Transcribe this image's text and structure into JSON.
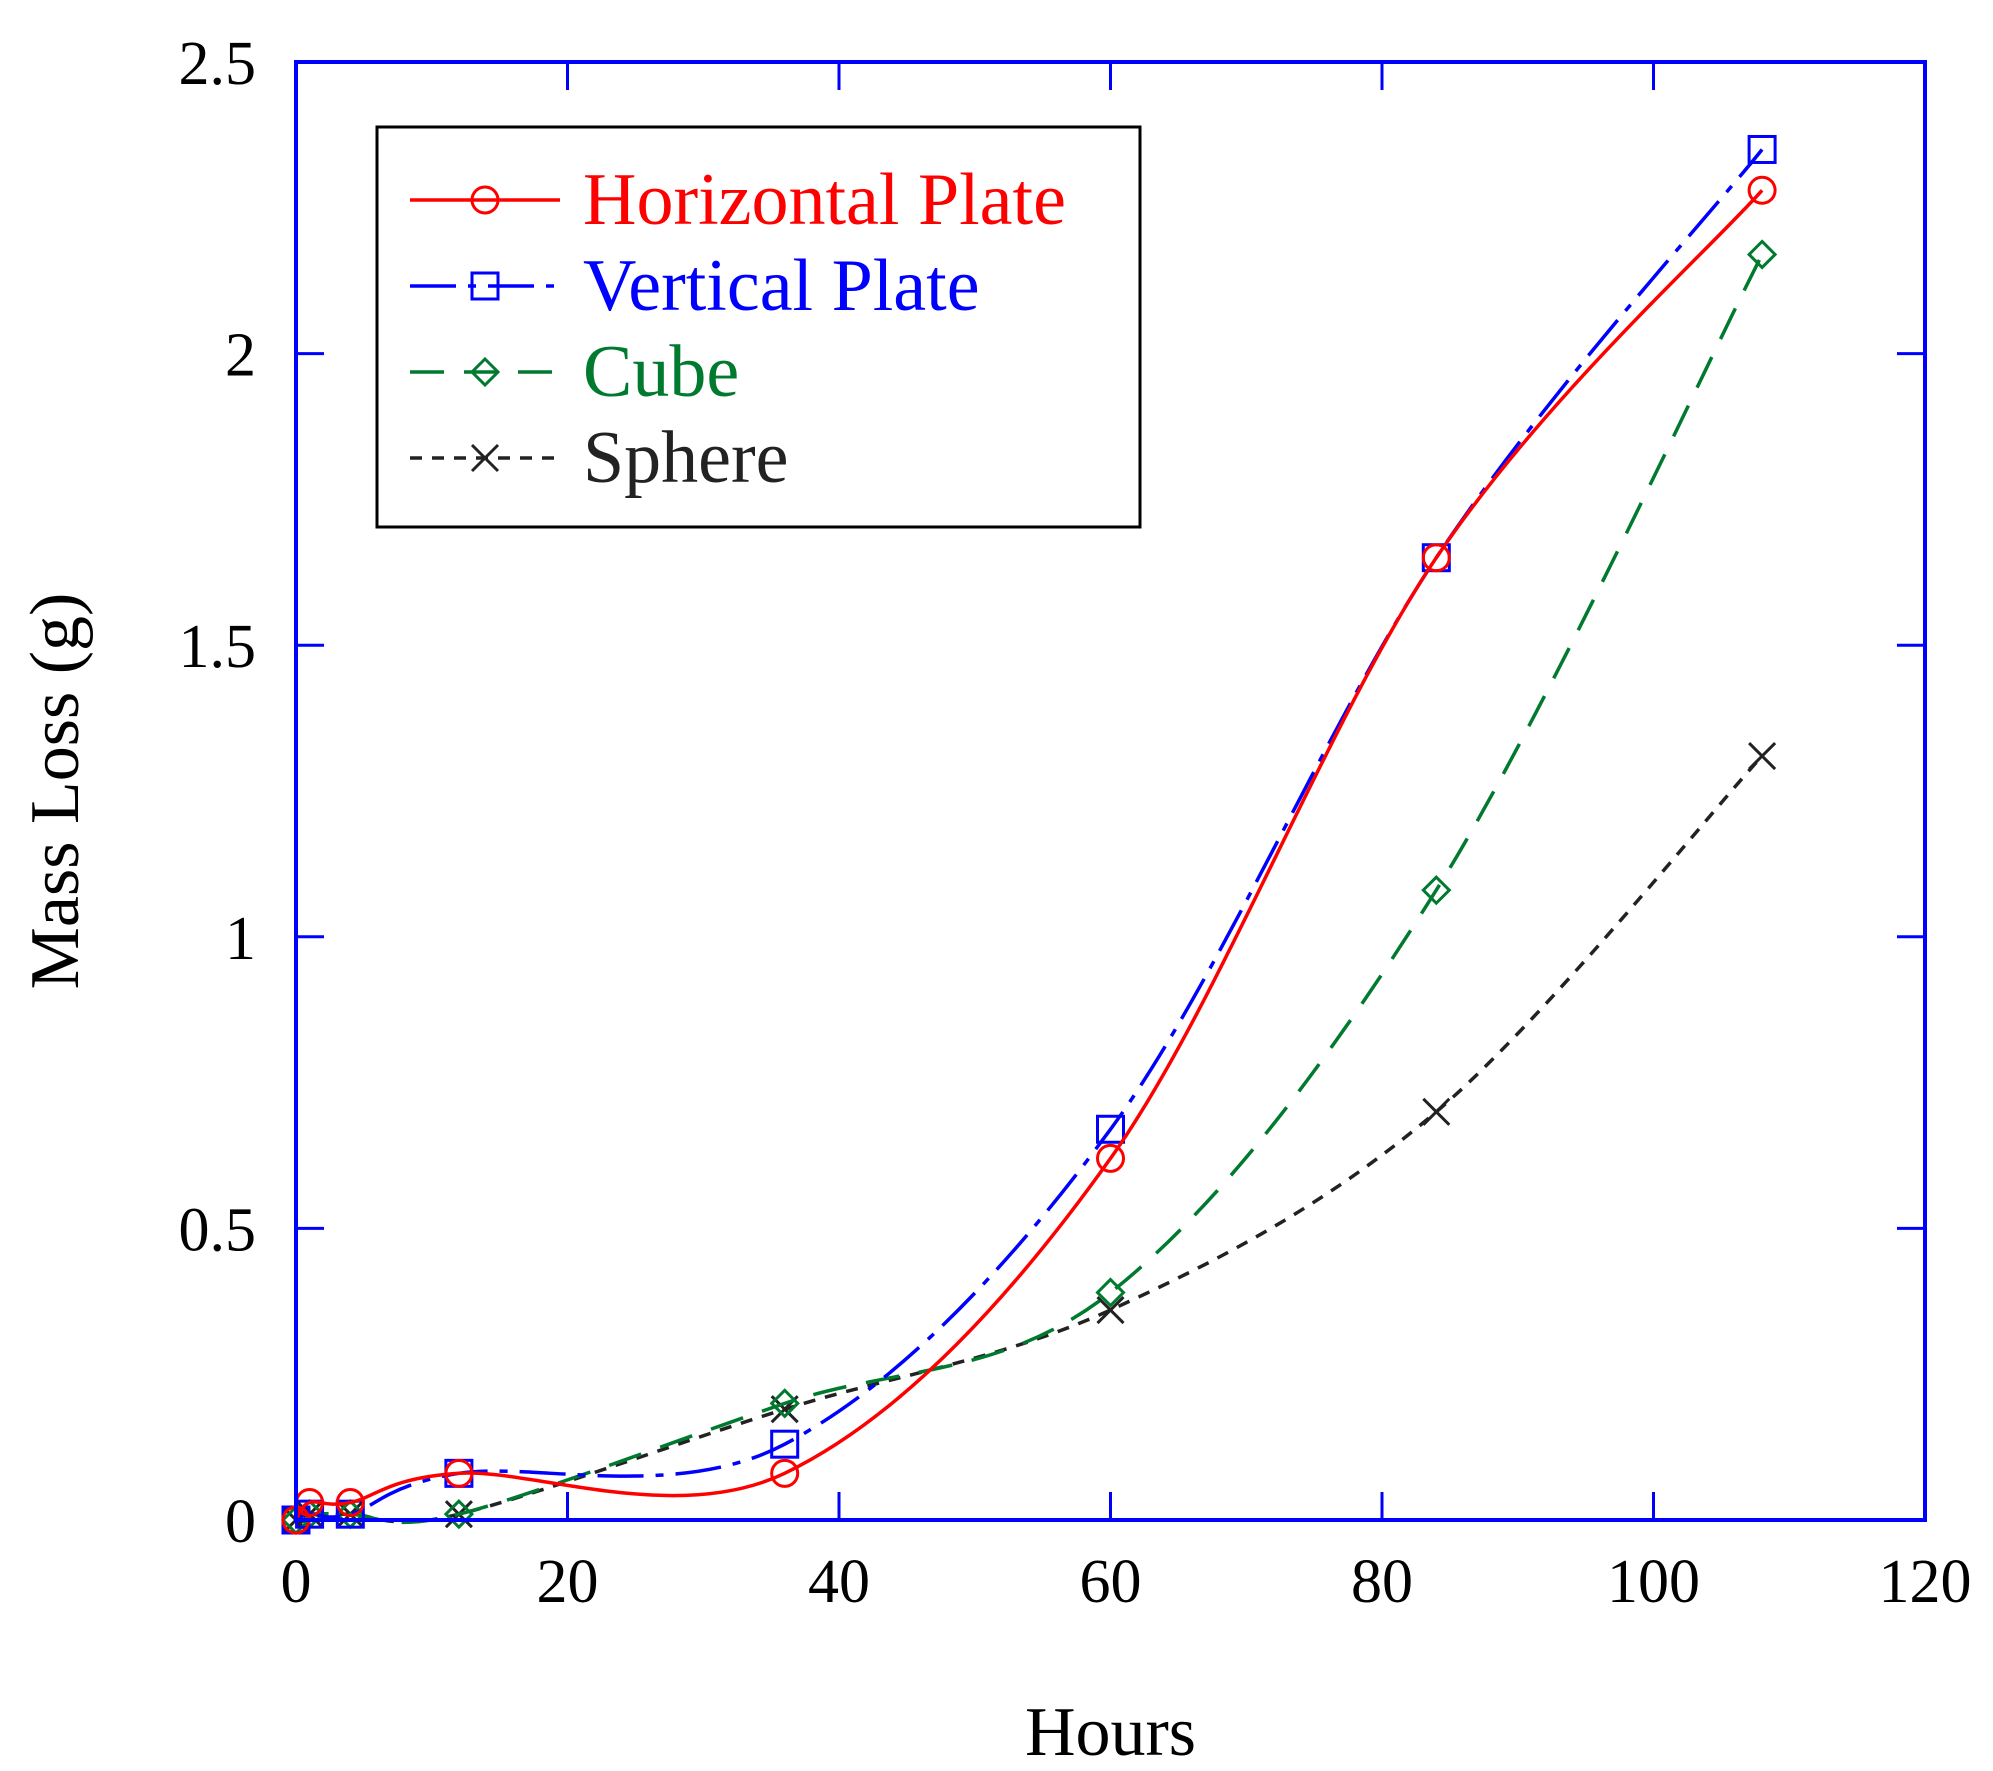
{
  "chart_data": {
    "type": "line",
    "title": "",
    "xlabel": "Hours",
    "ylabel": "Mass Loss (g)",
    "xlim": [
      0,
      120
    ],
    "ylim": [
      0,
      2.5
    ],
    "grid": false,
    "legend_position": "top-left",
    "xticks": [
      {
        "value": 0,
        "label": "0"
      },
      {
        "value": 20,
        "label": "20"
      },
      {
        "value": 40,
        "label": "40"
      },
      {
        "value": 60,
        "label": "60"
      },
      {
        "value": 80,
        "label": "80"
      },
      {
        "value": 100,
        "label": "100"
      },
      {
        "value": 120,
        "label": "120"
      }
    ],
    "yticks": [
      {
        "value": 0,
        "label": "0"
      },
      {
        "value": 0.5,
        "label": "0.5"
      },
      {
        "value": 1,
        "label": "1"
      },
      {
        "value": 1.5,
        "label": "1.5"
      },
      {
        "value": 2,
        "label": "2"
      },
      {
        "value": 2.5,
        "label": "2.5"
      }
    ],
    "series": [
      {
        "name": "Horizontal Plate",
        "color": "#ff0000",
        "marker": "circle",
        "dash": "solid",
        "x": [
          0,
          1,
          4,
          12,
          36,
          60,
          84,
          108
        ],
        "y": [
          0,
          0.03,
          0.03,
          0.08,
          0.08,
          0.62,
          1.65,
          2.28
        ]
      },
      {
        "name": "Vertical Plate",
        "color": "#0000ff",
        "marker": "square",
        "dash": "dashdot",
        "x": [
          0,
          1,
          4,
          12,
          36,
          60,
          84,
          108
        ],
        "y": [
          0,
          0.01,
          0.01,
          0.08,
          0.13,
          0.67,
          1.65,
          2.35
        ]
      },
      {
        "name": "Cube",
        "color": "#007a2e",
        "marker": "diamond",
        "dash": "longdash",
        "x": [
          0,
          1,
          4,
          12,
          36,
          60,
          84,
          108
        ],
        "y": [
          0,
          0.01,
          0.01,
          0.01,
          0.2,
          0.39,
          1.08,
          2.17
        ]
      },
      {
        "name": "Sphere",
        "color": "#222222",
        "marker": "x",
        "dash": "shortdash",
        "x": [
          0,
          1,
          4,
          12,
          36,
          60,
          84,
          108
        ],
        "y": [
          0,
          0.01,
          0.01,
          0.01,
          0.19,
          0.36,
          0.7,
          1.31
        ]
      }
    ]
  }
}
